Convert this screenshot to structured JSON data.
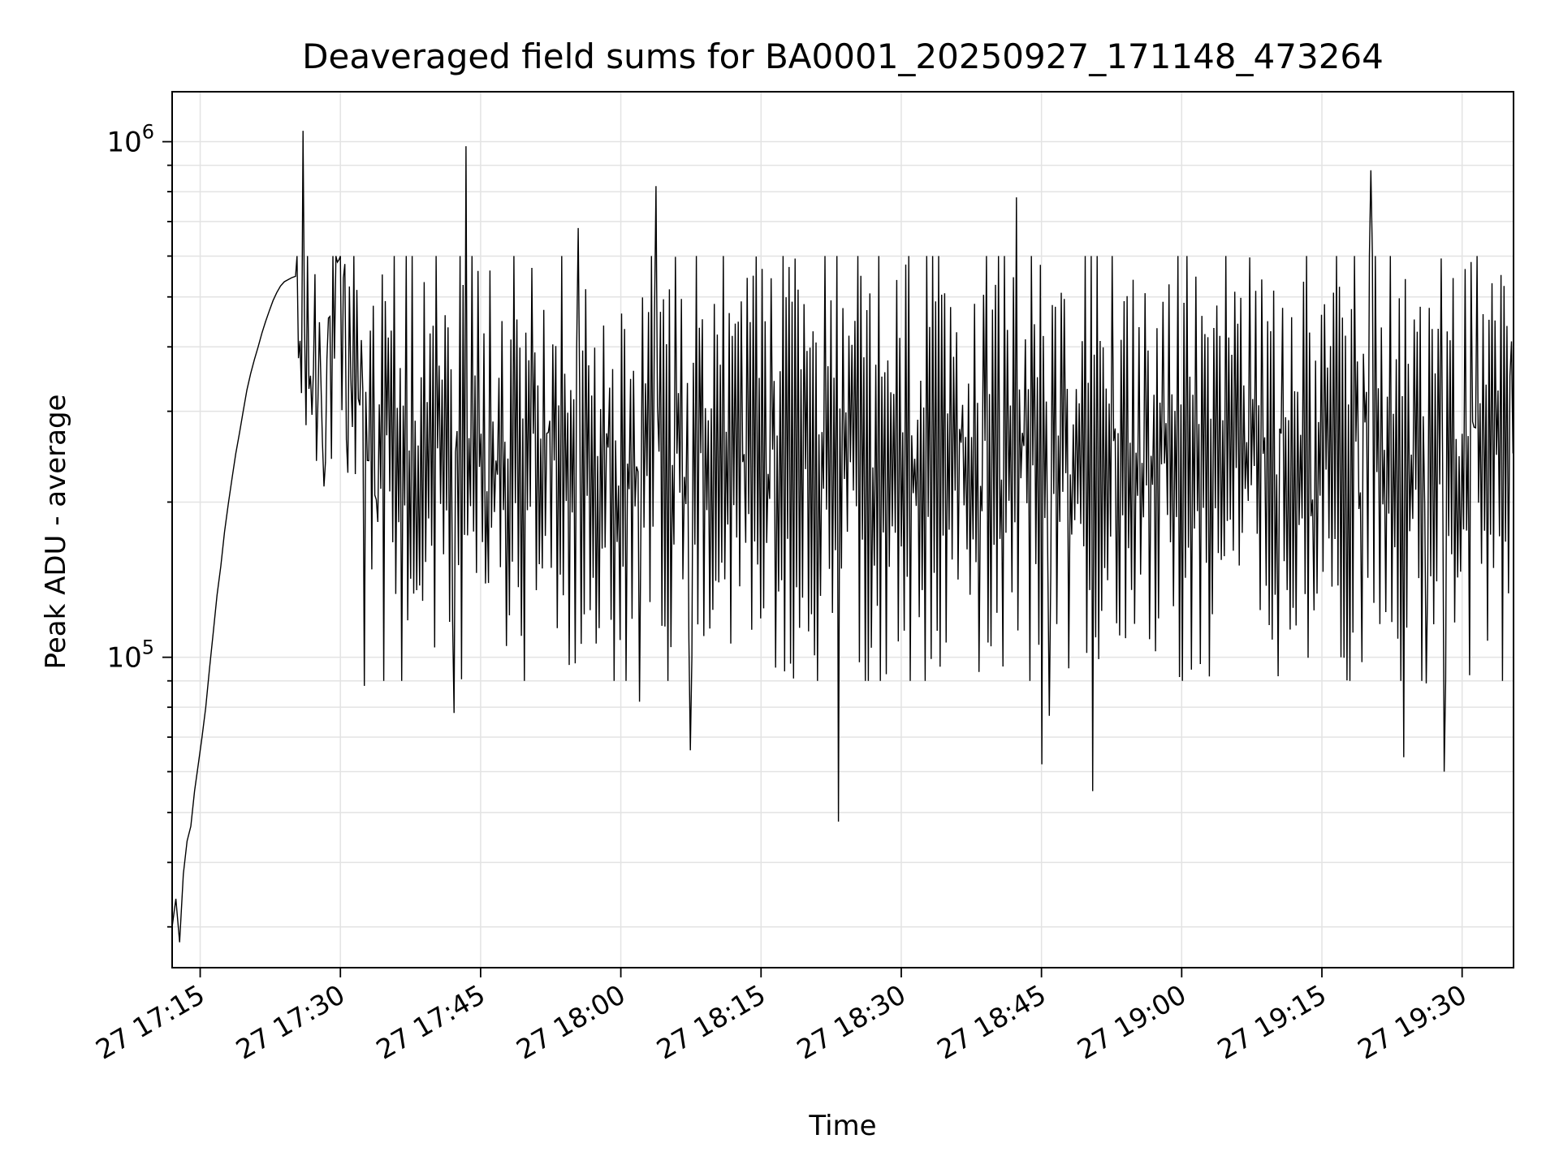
{
  "chart_data": {
    "type": "line",
    "title": "Deaveraged field sums for BA0001_20250927_171148_473264",
    "xlabel": "Time",
    "ylabel": "Peak ADU - average",
    "yscale": "log",
    "ylim": [
      25000,
      1250000
    ],
    "grid": true,
    "line_color": "#000000",
    "xlim_minutes_since_17_00": [
      12.0,
      155.5
    ],
    "x_ticks": [
      {
        "label": "27 17:15",
        "minutes": 15
      },
      {
        "label": "27 17:30",
        "minutes": 30
      },
      {
        "label": "27 17:45",
        "minutes": 45
      },
      {
        "label": "27 18:00",
        "minutes": 60
      },
      {
        "label": "27 18:15",
        "minutes": 75
      },
      {
        "label": "27 18:30",
        "minutes": 90
      },
      {
        "label": "27 18:45",
        "minutes": 105
      },
      {
        "label": "27 19:00",
        "minutes": 120
      },
      {
        "label": "27 19:15",
        "minutes": 135
      },
      {
        "label": "27 19:30",
        "minutes": 150
      }
    ],
    "y_ticks": [
      {
        "base": "10",
        "exp": "5",
        "value": 100000
      },
      {
        "base": "10",
        "exp": "6",
        "value": 1000000
      }
    ],
    "series": [
      {
        "name": "deaveraged field sum",
        "ramp": [
          [
            12.0,
            30000
          ],
          [
            12.4,
            34000
          ],
          [
            12.8,
            28000
          ],
          [
            13.2,
            38000
          ],
          [
            13.6,
            44000
          ],
          [
            14.0,
            47000
          ],
          [
            14.4,
            55000
          ],
          [
            14.8,
            62000
          ],
          [
            15.2,
            70000
          ],
          [
            15.6,
            80000
          ],
          [
            16.0,
            95000
          ],
          [
            16.4,
            112000
          ],
          [
            16.8,
            132000
          ],
          [
            17.2,
            150000
          ],
          [
            17.6,
            175000
          ],
          [
            18.0,
            198000
          ],
          [
            18.4,
            222000
          ],
          [
            18.8,
            248000
          ],
          [
            19.2,
            272000
          ],
          [
            19.6,
            300000
          ],
          [
            20.0,
            330000
          ],
          [
            20.4,
            355000
          ],
          [
            20.8,
            378000
          ],
          [
            21.2,
            400000
          ],
          [
            21.6,
            425000
          ],
          [
            22.0,
            448000
          ],
          [
            22.4,
            470000
          ],
          [
            22.8,
            492000
          ],
          [
            23.2,
            510000
          ],
          [
            23.6,
            525000
          ],
          [
            24.0,
            535000
          ],
          [
            24.4,
            540000
          ],
          [
            24.8,
            545000
          ],
          [
            25.2,
            548000
          ]
        ],
        "noise": {
          "start": 25.2,
          "end": 155.5,
          "step": 0.16,
          "min": 90000,
          "max": 600000,
          "median": 240000
        },
        "spikes": [
          [
            26.0,
            1050000
          ],
          [
            32.5,
            88000
          ],
          [
            42.2,
            78000
          ],
          [
            43.4,
            980000
          ],
          [
            55.4,
            680000
          ],
          [
            62.0,
            82000
          ],
          [
            63.7,
            820000
          ],
          [
            67.5,
            66000
          ],
          [
            83.3,
            48000
          ],
          [
            102.3,
            780000
          ],
          [
            105.0,
            62000
          ],
          [
            105.8,
            77000
          ],
          [
            110.5,
            55000
          ],
          [
            137.0,
            100000
          ],
          [
            140.2,
            880000
          ],
          [
            143.8,
            64000
          ],
          [
            146.2,
            89000
          ],
          [
            148.0,
            60000
          ],
          [
            155.2,
            410000
          ]
        ]
      }
    ]
  }
}
